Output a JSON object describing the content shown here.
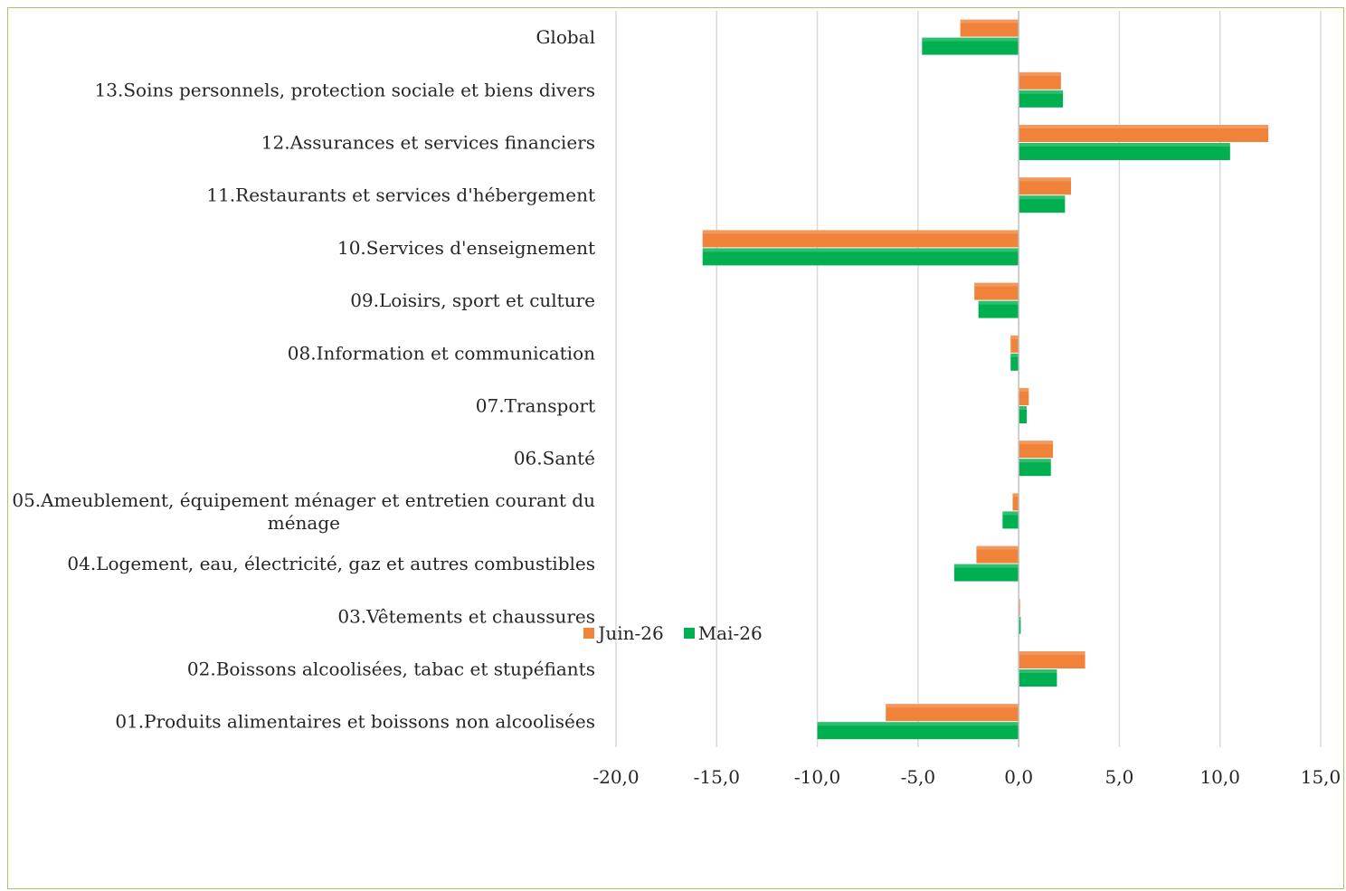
{
  "chart_data": {
    "type": "bar",
    "orientation": "horizontal",
    "categories": [
      "Global",
      "13.Soins personnels, protection sociale et biens divers",
      "12.Assurances et services financiers",
      "11.Restaurants et services d'hébergement",
      "10.Services d'enseignement",
      "09.Loisirs, sport et culture",
      "08.Information et communication",
      "07.Transport",
      "06.Santé",
      "05.Ameublement, équipement ménager et entretien courant du ménage",
      "04.Logement, eau, électricité, gaz et autres combustibles",
      "03.Vêtements et chaussures",
      "02.Boissons alcoolisées, tabac et stupéfiants",
      "01.Produits alimentaires et boissons non alcoolisées"
    ],
    "series": [
      {
        "name": "Juin-26",
        "color": "#f0823a",
        "values": [
          -2.9,
          2.1,
          12.4,
          2.6,
          -15.7,
          -2.2,
          -0.4,
          0.5,
          1.7,
          -0.3,
          -2.1,
          0.0,
          3.3,
          -6.6
        ]
      },
      {
        "name": "Mai-26",
        "color": "#00b050",
        "values": [
          -4.8,
          2.2,
          10.5,
          2.3,
          -15.7,
          -2.0,
          -0.4,
          0.4,
          1.6,
          -0.8,
          -3.2,
          0.1,
          1.9,
          -10.0
        ]
      }
    ],
    "xlim": [
      -20,
      15
    ],
    "xticks": [
      -20,
      -15,
      -10,
      -5,
      0,
      5,
      10,
      15
    ],
    "xtick_labels": [
      "-20,0",
      "-15,0",
      "-10,0",
      "-5,0",
      "0,0",
      "5,0",
      "10,0",
      "15,0"
    ],
    "grid": true,
    "legend_position": "bottom",
    "title": "",
    "xlabel": "",
    "ylabel": ""
  }
}
